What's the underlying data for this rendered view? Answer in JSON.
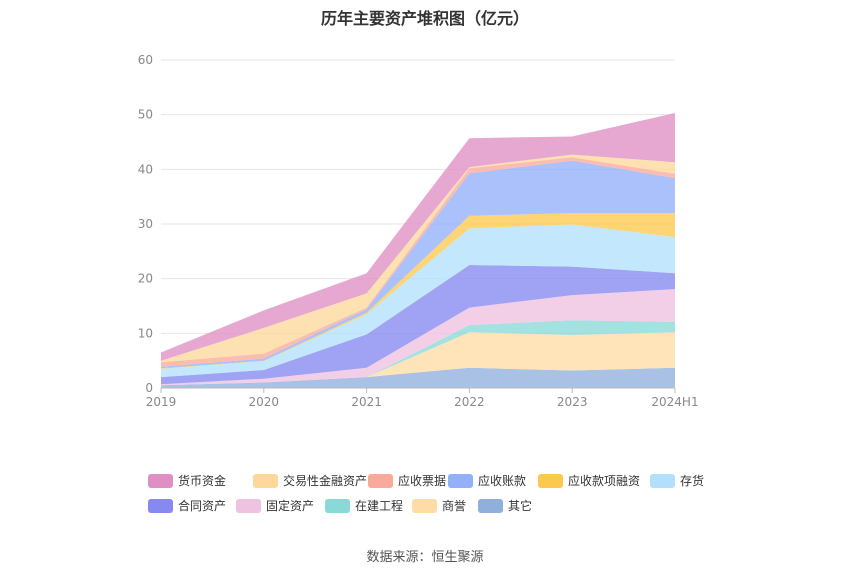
{
  "title": "历年主要资产堆积图（亿元）",
  "source": "数据来源：恒生聚源",
  "chart_data": {
    "type": "area",
    "stacked": true,
    "title": "历年主要资产堆积图（亿元）",
    "categories": [
      "2019",
      "2020",
      "2021",
      "2022",
      "2023",
      "2024H1"
    ],
    "ylim": [
      0,
      60
    ],
    "yticks": [
      0,
      10,
      20,
      30,
      40,
      50,
      60
    ],
    "grid": true,
    "legend_position": "bottom",
    "series": [
      {
        "name": "其它",
        "color": "#8fb0dd",
        "values": [
          0.5,
          1.0,
          2.0,
          3.7,
          3.2,
          3.7
        ]
      },
      {
        "name": "商誉",
        "color": "#ffdca6",
        "values": [
          0.0,
          0.0,
          0.0,
          6.5,
          6.5,
          6.5
        ]
      },
      {
        "name": "在建工程",
        "color": "#8ad8d8",
        "values": [
          0.0,
          0.0,
          0.0,
          1.3,
          2.7,
          1.9
        ]
      },
      {
        "name": "固定资产",
        "color": "#eec2e0",
        "values": [
          0.2,
          0.7,
          1.7,
          3.2,
          4.6,
          6.0
        ]
      },
      {
        "name": "合同资产",
        "color": "#8589f0",
        "values": [
          1.3,
          1.6,
          6.1,
          7.8,
          5.2,
          2.9
        ]
      },
      {
        "name": "存货",
        "color": "#b2e0fb",
        "values": [
          1.5,
          1.6,
          3.7,
          6.7,
          7.7,
          6.6
        ]
      },
      {
        "name": "应收款项融资",
        "color": "#fcc94e",
        "values": [
          0.1,
          0.1,
          0.3,
          2.3,
          2.1,
          4.4
        ]
      },
      {
        "name": "应收账款",
        "color": "#94b0fb",
        "values": [
          0.3,
          0.4,
          0.6,
          7.8,
          9.6,
          6.4
        ]
      },
      {
        "name": "应收票据",
        "color": "#fba99a",
        "values": [
          0.8,
          0.9,
          0.3,
          0.9,
          0.6,
          0.8
        ]
      },
      {
        "name": "交易性金融资产",
        "color": "#fdd89a",
        "values": [
          0.3,
          4.7,
          2.6,
          0.2,
          0.5,
          2.1
        ]
      },
      {
        "name": "货币资金",
        "color": "#df8fc4",
        "values": [
          1.5,
          3.2,
          3.7,
          5.3,
          3.3,
          9.0
        ]
      }
    ]
  },
  "legend": [
    {
      "name": "货币资金",
      "color": "#df8fc4"
    },
    {
      "name": "交易性金融资产",
      "color": "#fdd89a"
    },
    {
      "name": "应收票据",
      "color": "#fba99a"
    },
    {
      "name": "应收账款",
      "color": "#94b0fb"
    },
    {
      "name": "应收款项融资",
      "color": "#fcc94e"
    },
    {
      "name": "存货",
      "color": "#b2e0fb"
    },
    {
      "name": "合同资产",
      "color": "#8589f0"
    },
    {
      "name": "固定资产",
      "color": "#eec2e0"
    },
    {
      "name": "在建工程",
      "color": "#8ad8d8"
    },
    {
      "name": "商誉",
      "color": "#ffdca6"
    },
    {
      "name": "其它",
      "color": "#8fb0dd"
    }
  ]
}
